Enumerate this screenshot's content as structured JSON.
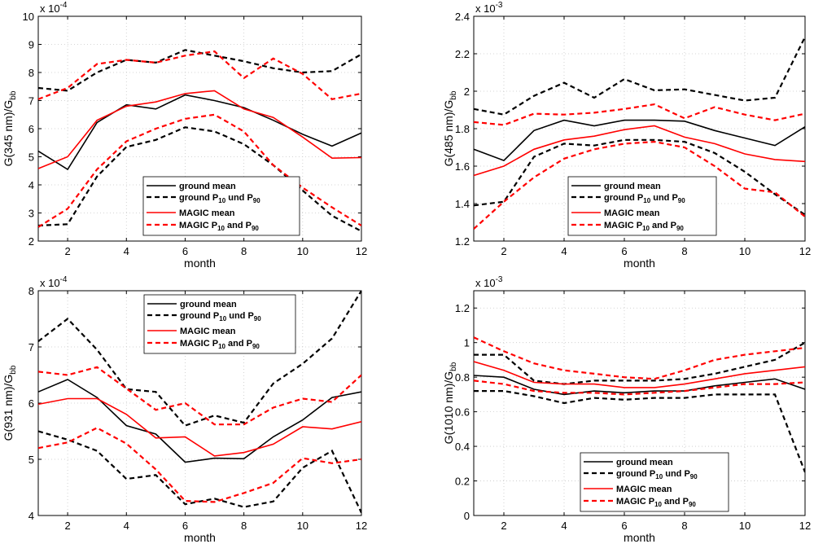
{
  "chart_data": [
    {
      "type": "line",
      "panel": "top-left",
      "ylabel_main": "G(345 nm)/G",
      "ylabel_sub": "bb",
      "xlabel": "month",
      "exponent_base": "x 10",
      "exponent_power": "-4",
      "xlim": [
        1,
        12
      ],
      "ylim": [
        2,
        10
      ],
      "xticks": [
        2,
        4,
        6,
        8,
        10,
        12
      ],
      "yticks": [
        2,
        3,
        4,
        5,
        6,
        7,
        8,
        9,
        10
      ],
      "legend_position": "bottom-center",
      "x": [
        1,
        2,
        3,
        4,
        5,
        6,
        7,
        8,
        9,
        10,
        11,
        12
      ],
      "series": [
        {
          "name": "ground mean",
          "color": "#000000",
          "dash": "solid",
          "values": [
            5.2,
            4.55,
            6.22,
            6.85,
            6.7,
            7.2,
            7.0,
            6.75,
            6.3,
            5.8,
            5.38,
            5.85
          ]
        },
        {
          "name": "ground P10",
          "color": "#000000",
          "dash": "dashed",
          "values": [
            2.55,
            2.6,
            4.3,
            5.35,
            5.6,
            6.05,
            5.9,
            5.45,
            4.7,
            3.8,
            2.9,
            2.35
          ]
        },
        {
          "name": "ground P90",
          "color": "#000000",
          "dash": "dashed",
          "values": [
            7.45,
            7.35,
            8.0,
            8.45,
            8.35,
            8.8,
            8.6,
            8.4,
            8.15,
            8.0,
            8.05,
            8.65
          ]
        },
        {
          "name": "MAGIC mean",
          "color": "#ff0000",
          "dash": "solid",
          "values": [
            4.58,
            5.0,
            6.3,
            6.8,
            6.95,
            7.25,
            7.35,
            6.7,
            6.4,
            5.7,
            4.95,
            4.97
          ]
        },
        {
          "name": "MAGIC P10",
          "color": "#ff0000",
          "dash": "dashed",
          "values": [
            2.5,
            3.15,
            4.55,
            5.55,
            6.0,
            6.35,
            6.5,
            5.9,
            4.7,
            3.9,
            3.2,
            2.55
          ]
        },
        {
          "name": "MAGIC P90",
          "color": "#ff0000",
          "dash": "dashed",
          "values": [
            7.05,
            7.45,
            8.3,
            8.45,
            8.35,
            8.6,
            8.75,
            7.8,
            8.5,
            7.95,
            7.05,
            7.25
          ]
        }
      ]
    },
    {
      "type": "line",
      "panel": "top-right",
      "ylabel_main": "G(485 nm)/G",
      "ylabel_sub": "bb",
      "xlabel": "month",
      "exponent_base": "x 10",
      "exponent_power": "-3",
      "xlim": [
        1,
        12
      ],
      "ylim": [
        1.2,
        2.4
      ],
      "xticks": [
        2,
        4,
        6,
        8,
        10,
        12
      ],
      "yticks": [
        1.2,
        1.4,
        1.6,
        1.8,
        2.0,
        2.2,
        2.4
      ],
      "ytick_labels": [
        "1.2",
        "1.4",
        "1.6",
        "1.8",
        "2",
        "2.2",
        "2.4"
      ],
      "legend_position": "bottom-center",
      "x": [
        1,
        2,
        3,
        4,
        5,
        6,
        7,
        8,
        9,
        10,
        11,
        12
      ],
      "series": [
        {
          "name": "ground mean",
          "color": "#000000",
          "dash": "solid",
          "values": [
            1.69,
            1.63,
            1.79,
            1.845,
            1.815,
            1.845,
            1.845,
            1.84,
            1.79,
            1.75,
            1.71,
            1.81
          ]
        },
        {
          "name": "ground P10",
          "color": "#000000",
          "dash": "dashed",
          "values": [
            1.39,
            1.41,
            1.65,
            1.72,
            1.71,
            1.74,
            1.74,
            1.73,
            1.67,
            1.57,
            1.45,
            1.34
          ]
        },
        {
          "name": "ground P90",
          "color": "#000000",
          "dash": "dashed",
          "values": [
            1.905,
            1.875,
            1.975,
            2.045,
            1.965,
            2.065,
            2.005,
            2.01,
            1.98,
            1.95,
            1.965,
            2.29
          ]
        },
        {
          "name": "MAGIC mean",
          "color": "#ff0000",
          "dash": "solid",
          "values": [
            1.55,
            1.6,
            1.69,
            1.74,
            1.76,
            1.795,
            1.815,
            1.755,
            1.72,
            1.665,
            1.635,
            1.625
          ]
        },
        {
          "name": "MAGIC P10",
          "color": "#ff0000",
          "dash": "dashed",
          "values": [
            1.265,
            1.41,
            1.54,
            1.64,
            1.69,
            1.72,
            1.73,
            1.7,
            1.6,
            1.48,
            1.46,
            1.33
          ]
        },
        {
          "name": "MAGIC P90",
          "color": "#ff0000",
          "dash": "dashed",
          "values": [
            1.835,
            1.82,
            1.88,
            1.875,
            1.885,
            1.905,
            1.93,
            1.855,
            1.915,
            1.875,
            1.845,
            1.88
          ]
        }
      ]
    },
    {
      "type": "line",
      "panel": "bottom-left",
      "ylabel_main": "G(931 nm)/G",
      "ylabel_sub": "bb",
      "xlabel": "month",
      "exponent_base": "x 10",
      "exponent_power": "-4",
      "xlim": [
        1,
        12
      ],
      "ylim": [
        4,
        8
      ],
      "xticks": [
        2,
        4,
        6,
        8,
        10,
        12
      ],
      "yticks": [
        4,
        5,
        6,
        7,
        8
      ],
      "legend_position": "top-center",
      "x": [
        1,
        2,
        3,
        4,
        5,
        6,
        7,
        8,
        9,
        10,
        11,
        12
      ],
      "series": [
        {
          "name": "ground mean",
          "color": "#000000",
          "dash": "solid",
          "values": [
            6.2,
            6.42,
            6.1,
            5.6,
            5.45,
            4.95,
            5.02,
            5.01,
            5.4,
            5.7,
            6.1,
            6.2
          ]
        },
        {
          "name": "ground P10",
          "color": "#000000",
          "dash": "dashed",
          "values": [
            5.5,
            5.35,
            5.15,
            4.65,
            4.72,
            4.2,
            4.3,
            4.15,
            4.25,
            4.85,
            5.15,
            4.05
          ]
        },
        {
          "name": "ground P90",
          "color": "#000000",
          "dash": "dashed",
          "values": [
            7.1,
            7.5,
            6.95,
            6.25,
            6.2,
            5.6,
            5.78,
            5.65,
            6.35,
            6.7,
            7.15,
            8.0
          ]
        },
        {
          "name": "MAGIC mean",
          "color": "#ff0000",
          "dash": "solid",
          "values": [
            5.98,
            6.08,
            6.08,
            5.8,
            5.38,
            5.4,
            5.06,
            5.12,
            5.27,
            5.58,
            5.54,
            5.67
          ]
        },
        {
          "name": "MAGIC P10",
          "color": "#ff0000",
          "dash": "dashed",
          "values": [
            5.2,
            5.3,
            5.56,
            5.28,
            4.82,
            4.26,
            4.24,
            4.4,
            4.58,
            5.02,
            4.93,
            5.0
          ]
        },
        {
          "name": "MAGIC P90",
          "color": "#ff0000",
          "dash": "dashed",
          "values": [
            6.56,
            6.5,
            6.64,
            6.26,
            5.88,
            6.0,
            5.62,
            5.62,
            5.92,
            6.08,
            6.02,
            6.5
          ]
        }
      ]
    },
    {
      "type": "line",
      "panel": "bottom-right",
      "ylabel_main": "G(1010 nm)/G",
      "ylabel_sub": "bb",
      "xlabel": "month",
      "exponent_base": "x 10",
      "exponent_power": "-3",
      "xlim": [
        1,
        12
      ],
      "ylim": [
        0,
        1.3
      ],
      "xticks": [
        2,
        4,
        6,
        8,
        10,
        12
      ],
      "yticks": [
        0,
        0.2,
        0.4,
        0.6,
        0.8,
        1.0,
        1.2
      ],
      "ytick_labels": [
        "0",
        "0.2",
        "0.4",
        "0.6",
        "0.8",
        "1",
        "1.2"
      ],
      "legend_position": "bottom-center",
      "x": [
        1,
        2,
        3,
        4,
        5,
        6,
        7,
        8,
        9,
        10,
        11,
        12
      ],
      "series": [
        {
          "name": "ground mean",
          "color": "#000000",
          "dash": "solid",
          "values": [
            0.81,
            0.8,
            0.73,
            0.7,
            0.72,
            0.71,
            0.72,
            0.72,
            0.75,
            0.77,
            0.79,
            0.73
          ]
        },
        {
          "name": "ground P10",
          "color": "#000000",
          "dash": "dashed",
          "values": [
            0.72,
            0.72,
            0.69,
            0.65,
            0.68,
            0.67,
            0.68,
            0.68,
            0.7,
            0.7,
            0.7,
            0.25
          ]
        },
        {
          "name": "ground P90",
          "color": "#000000",
          "dash": "dashed",
          "values": [
            0.93,
            0.93,
            0.78,
            0.76,
            0.78,
            0.78,
            0.78,
            0.79,
            0.82,
            0.86,
            0.9,
            1.0
          ]
        },
        {
          "name": "MAGIC mean",
          "color": "#ff0000",
          "dash": "solid",
          "values": [
            0.89,
            0.84,
            0.77,
            0.76,
            0.76,
            0.74,
            0.74,
            0.76,
            0.79,
            0.82,
            0.84,
            0.86
          ]
        },
        {
          "name": "MAGIC P10",
          "color": "#ff0000",
          "dash": "dashed",
          "values": [
            0.78,
            0.76,
            0.72,
            0.71,
            0.71,
            0.7,
            0.71,
            0.72,
            0.74,
            0.76,
            0.76,
            0.77
          ]
        },
        {
          "name": "MAGIC P90",
          "color": "#ff0000",
          "dash": "dashed",
          "values": [
            1.03,
            0.95,
            0.88,
            0.84,
            0.82,
            0.8,
            0.79,
            0.84,
            0.9,
            0.93,
            0.95,
            0.97
          ]
        }
      ]
    }
  ],
  "legend": {
    "ground_mean": "ground mean",
    "ground_p_prefix": "ground P",
    "ground_p_mid": " und P",
    "magic_mean": "MAGIC mean",
    "magic_p_prefix": "MAGIC P",
    "magic_p_mid": " and P",
    "sub_10": "10",
    "sub_90": "90"
  }
}
